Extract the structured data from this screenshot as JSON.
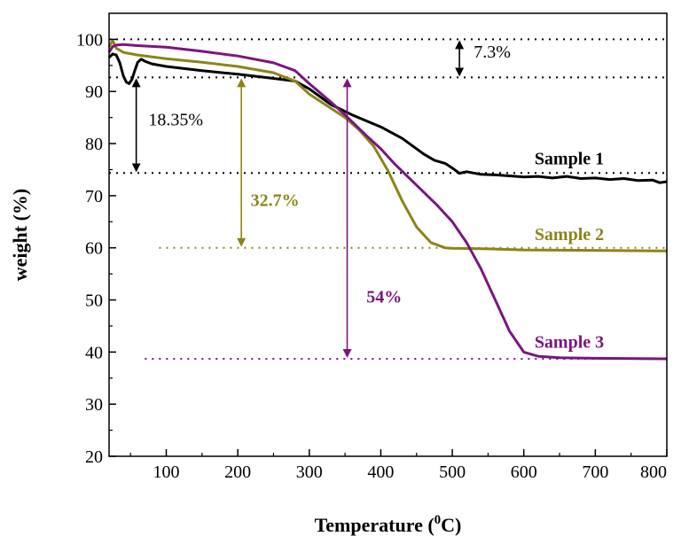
{
  "chart_data": {
    "type": "line",
    "xlabel": "Temperature (",
    "xlabel_sup": "0",
    "xlabel_unit": "C)",
    "ylabel": "weight (%)",
    "xlim": [
      20,
      800
    ],
    "ylim": [
      20,
      105
    ],
    "xticks": [
      100,
      200,
      300,
      400,
      500,
      600,
      700,
      800
    ],
    "xtick_labels": [
      "100",
      "200",
      "300",
      "400",
      "500",
      "600",
      "700",
      "800"
    ],
    "yticks": [
      20,
      30,
      40,
      50,
      60,
      70,
      80,
      90,
      100
    ],
    "ytick_labels": [
      "20",
      "30",
      "40",
      "50",
      "60",
      "70",
      "80",
      "90",
      "100"
    ],
    "series": [
      {
        "name": "Sample 1",
        "color": "#000000",
        "x": [
          20,
          25,
          30,
          35,
          40,
          44,
          48,
          52,
          56,
          60,
          65,
          70,
          80,
          100,
          150,
          200,
          250,
          280,
          300,
          330,
          360,
          400,
          430,
          460,
          475,
          490,
          500,
          510,
          520,
          540,
          560,
          580,
          600,
          620,
          640,
          660,
          680,
          700,
          720,
          740,
          760,
          780,
          790,
          800
        ],
        "y": [
          96.5,
          97.2,
          97.0,
          95.5,
          93.0,
          91.8,
          91.5,
          92.3,
          94.0,
          95.6,
          96.2,
          95.8,
          95.3,
          94.8,
          94.0,
          93.3,
          92.5,
          92.0,
          90.5,
          87.5,
          85.5,
          83.2,
          81.0,
          78.0,
          76.8,
          76.2,
          75.3,
          74.3,
          74.6,
          74.1,
          74.0,
          73.8,
          73.6,
          73.7,
          73.4,
          73.7,
          73.3,
          73.4,
          73.1,
          73.3,
          72.9,
          73.0,
          72.5,
          72.7
        ]
      },
      {
        "name": "Sample 2",
        "color": "#8c8418",
        "x": [
          20,
          25,
          30,
          40,
          60,
          100,
          150,
          200,
          250,
          280,
          300,
          330,
          350,
          370,
          390,
          410,
          430,
          450,
          470,
          490,
          500,
          550,
          600,
          700,
          800
        ],
        "y": [
          98.5,
          99.8,
          98.3,
          97.5,
          97.0,
          96.3,
          95.6,
          94.8,
          93.6,
          92.0,
          89.5,
          86.8,
          85.0,
          82.6,
          79.5,
          74.8,
          69.0,
          64.0,
          61.0,
          60.0,
          59.9,
          59.8,
          59.6,
          59.5,
          59.4
        ]
      },
      {
        "name": "Sample 3",
        "color": "#7b1580",
        "x": [
          20,
          25,
          30,
          40,
          60,
          100,
          150,
          200,
          250,
          280,
          300,
          330,
          350,
          380,
          400,
          420,
          450,
          480,
          500,
          520,
          540,
          560,
          580,
          600,
          620,
          650,
          700,
          800
        ],
        "y": [
          97.5,
          98.6,
          98.9,
          99.0,
          98.8,
          98.5,
          97.7,
          96.8,
          95.5,
          94.0,
          91.5,
          88.0,
          85.5,
          81.5,
          79.0,
          76.0,
          72.0,
          68.0,
          65.0,
          61.0,
          56.0,
          50.0,
          44.0,
          40.0,
          39.2,
          38.9,
          38.8,
          38.7
        ]
      }
    ],
    "reference_lines": [
      {
        "y": 100,
        "color": "#000000"
      },
      {
        "y": 92.7,
        "color": "#000000"
      },
      {
        "y": 74.35,
        "color": "#000000"
      },
      {
        "y": 60.0,
        "color": "#8c8418"
      },
      {
        "y": 38.7,
        "color": "#7b1580"
      }
    ],
    "arrows": [
      {
        "x": 510,
        "y_from": 100,
        "y_to": 92.7,
        "color": "#000000"
      },
      {
        "x": 58,
        "y_from": 92.7,
        "y_to": 74.35,
        "color": "#000000"
      },
      {
        "x": 205,
        "y_from": 92.7,
        "y_to": 60.0,
        "color": "#8c8418"
      },
      {
        "x": 353,
        "y_from": 92.7,
        "y_to": 38.7,
        "color": "#7b1580"
      }
    ],
    "annotations": [
      {
        "text": "7.3%",
        "x": 530,
        "y": 96.5,
        "color": "#000000",
        "bold": false
      },
      {
        "text": "18.35%",
        "x": 75,
        "y": 83.5,
        "color": "#000000",
        "bold": false
      },
      {
        "text": "32.7%",
        "x": 218,
        "y": 68.0,
        "color": "#8c8418",
        "bold": true
      },
      {
        "text": "54%",
        "x": 380,
        "y": 49.5,
        "color": "#7b1580",
        "bold": true
      },
      {
        "text": "Sample 1",
        "x": 615,
        "y": 76.0,
        "color": "#000000",
        "bold": true
      },
      {
        "text": "Sample 2",
        "x": 615,
        "y": 61.5,
        "color": "#8c8418",
        "bold": true
      },
      {
        "text": "Sample 3",
        "x": 615,
        "y": 40.8,
        "color": "#7b1580",
        "bold": true
      }
    ]
  }
}
